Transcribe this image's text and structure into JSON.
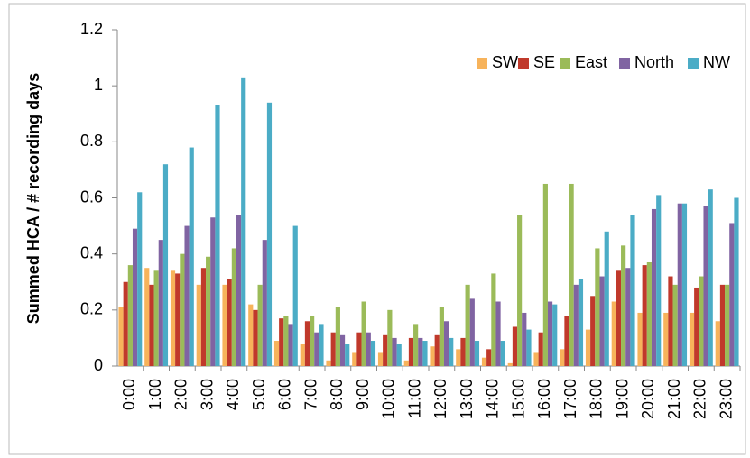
{
  "chart_data": {
    "type": "bar",
    "y_label": "Summed HCA / # recording days",
    "categories": [
      "0:00",
      "1:00",
      "2:00",
      "3:00",
      "4:00",
      "5:00",
      "6:00",
      "7:00",
      "8:00",
      "9:00",
      "10:00",
      "11:00",
      "12:00",
      "13:00",
      "14:00",
      "15:00",
      "16:00",
      "17:00",
      "18:00",
      "19:00",
      "20:00",
      "21:00",
      "22:00",
      "23:00"
    ],
    "series": [
      {
        "name": "SW",
        "color": "#f7b35b",
        "values": [
          0.21,
          0.35,
          0.34,
          0.29,
          0.29,
          0.22,
          0.09,
          0.08,
          0.02,
          0.05,
          0.05,
          0.02,
          0.07,
          0.06,
          0.03,
          0.01,
          0.05,
          0.06,
          0.13,
          0.23,
          0.19,
          0.19,
          0.19,
          0.16
        ]
      },
      {
        "name": "SE",
        "color": "#c0392b",
        "values": [
          0.3,
          0.29,
          0.33,
          0.35,
          0.31,
          0.2,
          0.17,
          0.16,
          0.12,
          0.12,
          0.11,
          0.1,
          0.11,
          0.1,
          0.06,
          0.14,
          0.12,
          0.18,
          0.25,
          0.34,
          0.36,
          0.32,
          0.28,
          0.29
        ]
      },
      {
        "name": "East",
        "color": "#9bbb59",
        "values": [
          0.36,
          0.34,
          0.4,
          0.39,
          0.42,
          0.29,
          0.18,
          0.18,
          0.21,
          0.23,
          0.2,
          0.15,
          0.21,
          0.29,
          0.33,
          0.54,
          0.65,
          0.65,
          0.42,
          0.43,
          0.37,
          0.29,
          0.32,
          0.29
        ]
      },
      {
        "name": "North",
        "color": "#8064a2",
        "values": [
          0.49,
          0.45,
          0.5,
          0.53,
          0.54,
          0.45,
          0.15,
          0.12,
          0.11,
          0.12,
          0.1,
          0.1,
          0.16,
          0.24,
          0.23,
          0.19,
          0.23,
          0.29,
          0.32,
          0.35,
          0.56,
          0.58,
          0.57,
          0.51
        ]
      },
      {
        "name": "NW",
        "color": "#4bacc6",
        "values": [
          0.62,
          0.72,
          0.78,
          0.93,
          1.03,
          0.94,
          0.5,
          0.15,
          0.08,
          0.09,
          0.08,
          0.09,
          0.1,
          0.09,
          0.09,
          0.13,
          0.22,
          0.31,
          0.48,
          0.54,
          0.61,
          0.58,
          0.63,
          0.6
        ]
      }
    ],
    "ylim": [
      0,
      1.2
    ],
    "yticks": [
      0,
      0.2,
      0.4,
      0.6,
      0.8,
      1,
      1.2
    ],
    "grid": false,
    "legend": "top-right"
  }
}
